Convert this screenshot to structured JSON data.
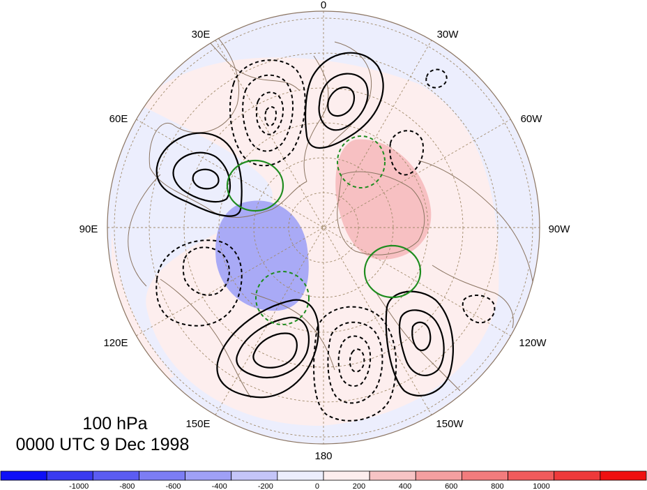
{
  "title": {
    "level": "100 hPa",
    "datetime": "0000 UTC 9 Dec 1998"
  },
  "map": {
    "projection": "polar stereographic, Northern Hemisphere",
    "longitude_labels": {
      "deg0": "0",
      "deg30w": "30W",
      "deg60w": "60W",
      "deg90w": "90W",
      "deg120w": "120W",
      "deg150w": "150W",
      "deg180": "180",
      "deg150e": "150E",
      "deg120e": "120E",
      "deg90e": "90E",
      "deg60e": "60E",
      "deg30e": "30E"
    },
    "contour_styles": {
      "positive": "solid black",
      "negative": "dashed black",
      "green_positive": "solid green",
      "green_negative": "dashed green"
    }
  },
  "colorbar": {
    "tick_labels": [
      "-1000",
      "-800",
      "-600",
      "-400",
      "-200",
      "0",
      "200",
      "400",
      "600",
      "800",
      "1000"
    ],
    "colors": [
      "#0f10f7",
      "#3a3bf0",
      "#5b5cf2",
      "#7c7df4",
      "#9fa0f6",
      "#c4c5f8",
      "#eceefd",
      "#fdeeee",
      "#f7c4c5",
      "#f49fa0",
      "#f27c7d",
      "#f05b5c",
      "#ee3a3b",
      "#ef1010"
    ]
  },
  "colors": {
    "coastline": "#8b7562",
    "grid": "#a08a6a",
    "green_contour": "#1e8c1e"
  }
}
